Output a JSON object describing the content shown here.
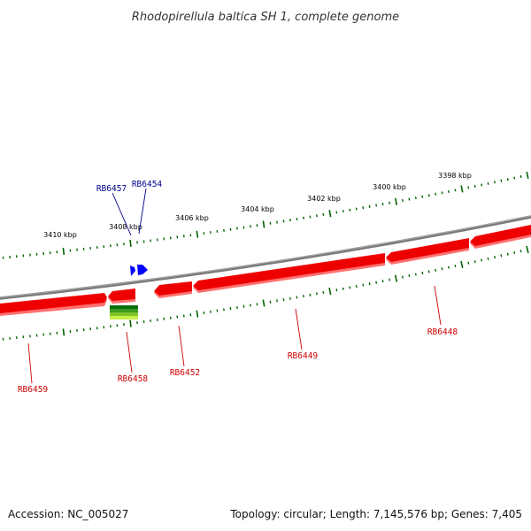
{
  "title": "Rhodopirellula baltica SH 1, complete genome",
  "footer": {
    "accession": "Accession: NC_005027",
    "summary": "Topology: circular; Length: 7,145,576 bp; Genes: 7,405"
  },
  "colors": {
    "backbone": "#808080",
    "gene_fill": "#ee0000",
    "gene_shade": "#ff7070",
    "reverse_gene_label": "#cc0000",
    "forward_gene_label": "#00008b",
    "forward_gene": "#0000ff",
    "tick": "#006400",
    "feature_stack": [
      "#0a6e0a",
      "#3c9a1e",
      "#7fc22a",
      "#c8f04a"
    ]
  },
  "scale": {
    "unit": "kbp",
    "labels": [
      "3410 kbp",
      "3408 kbp",
      "3406 kbp",
      "3404 kbp",
      "3402 kbp",
      "3400 kbp",
      "3398 kbp"
    ]
  },
  "genes": [
    {
      "label": "RB6459",
      "strand": "reverse"
    },
    {
      "label": "RB6458",
      "strand": "reverse"
    },
    {
      "label": "RB6457",
      "strand": "forward"
    },
    {
      "label": "RB6454",
      "strand": "forward"
    },
    {
      "label": "RB6452",
      "strand": "reverse"
    },
    {
      "label": "RB6449",
      "strand": "reverse"
    },
    {
      "label": "RB6448",
      "strand": "reverse"
    }
  ]
}
